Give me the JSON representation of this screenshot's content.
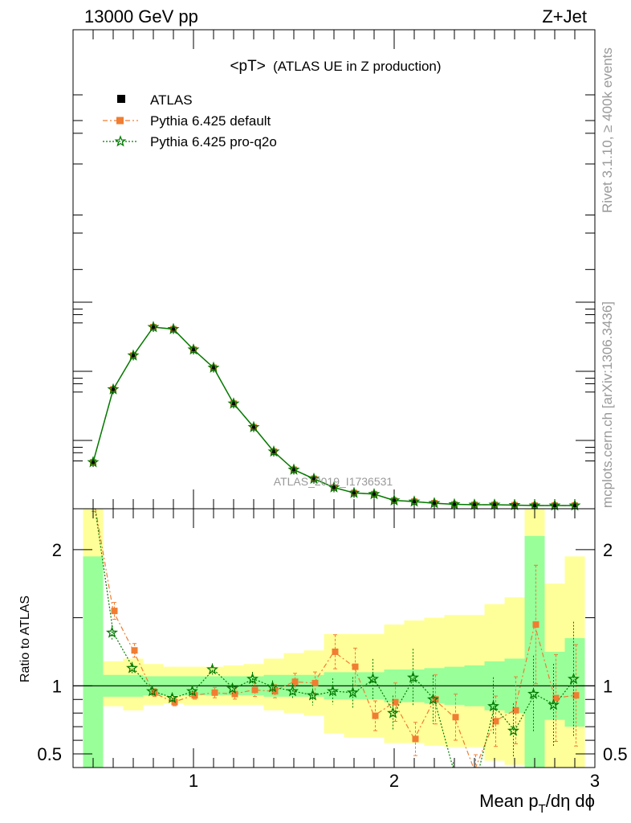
{
  "header": {
    "left": "13000 GeV pp",
    "right": "Z+Jet"
  },
  "title": {
    "main": "<pT>",
    "sub": "(ATLAS UE in Z production)"
  },
  "side": {
    "rivet": "Rivet 3.1.10, ≥ 400k events",
    "source": "mcplots.cern.ch [arXiv:1306.3436]"
  },
  "watermark": "ATLAS_2019_I1736531",
  "legend": {
    "data": "ATLAS",
    "mc1": "Pythia 6.425 default",
    "mc2": "Pythia 6.425 pro-q2o"
  },
  "axes": {
    "ratio_ylabel": "Ratio to ATLAS",
    "xlabel_main": "Mean p",
    "xlabel_sub": "T",
    "xlabel_tail": "/dη dϕ"
  },
  "colors": {
    "data": "#000000",
    "mc1": "#f07d32",
    "mc2": "#007a00",
    "band_inner": "#99ff99",
    "band_outer": "#ffff99"
  },
  "chart_data": [
    {
      "type": "line",
      "panel": "main",
      "xlim": [
        0.4,
        3.0
      ],
      "ylim": [
        0.0,
        1.0
      ],
      "y_scale": "relative (no tick labels printed)",
      "x": [
        0.5,
        0.6,
        0.7,
        0.8,
        0.9,
        1.0,
        1.1,
        1.2,
        1.3,
        1.4,
        1.5,
        1.6,
        1.7,
        1.8,
        1.9,
        2.0,
        2.1,
        2.2,
        2.3,
        2.4,
        2.5,
        2.6,
        2.7,
        2.8,
        2.9
      ],
      "series": [
        {
          "name": "ATLAS",
          "values": [
            0.112,
            0.297,
            0.383,
            0.455,
            0.45,
            0.398,
            0.352,
            0.261,
            0.201,
            0.139,
            0.093,
            0.07,
            0.048,
            0.034,
            0.031,
            0.015,
            0.012,
            0.008,
            0.005,
            0.004,
            0.004,
            0.003,
            0.002,
            0.002,
            0.002
          ]
        },
        {
          "name": "Pythia 6.425 default",
          "values": [
            0.112,
            0.297,
            0.383,
            0.455,
            0.45,
            0.398,
            0.352,
            0.261,
            0.201,
            0.139,
            0.093,
            0.07,
            0.048,
            0.034,
            0.031,
            0.015,
            0.012,
            0.008,
            0.005,
            0.004,
            0.004,
            0.003,
            0.002,
            0.002,
            0.002
          ]
        },
        {
          "name": "Pythia 6.425 pro-q2o",
          "values": [
            0.112,
            0.297,
            0.383,
            0.455,
            0.45,
            0.398,
            0.352,
            0.261,
            0.201,
            0.139,
            0.093,
            0.07,
            0.048,
            0.034,
            0.031,
            0.015,
            0.012,
            0.008,
            0.005,
            0.004,
            0.004,
            0.003,
            0.002,
            0.002,
            0.002
          ]
        }
      ]
    },
    {
      "type": "line",
      "panel": "ratio",
      "ylabel": "Ratio to ATLAS",
      "xlabel": "Mean pT/dη dϕ",
      "xlim": [
        0.4,
        3.0
      ],
      "ylim": [
        0.4,
        2.3
      ],
      "x_ticks": [
        1,
        2,
        3
      ],
      "y_ticks": [
        0.5,
        1,
        2
      ],
      "bands": {
        "x_edges": [
          0.45,
          0.55,
          0.65,
          0.75,
          0.85,
          0.95,
          1.05,
          1.15,
          1.25,
          1.35,
          1.45,
          1.55,
          1.65,
          1.75,
          1.85,
          1.95,
          2.05,
          2.15,
          2.25,
          2.35,
          2.45,
          2.55,
          2.65,
          2.75,
          2.85,
          2.95
        ],
        "inner_lo": [
          0.4,
          0.92,
          0.92,
          0.93,
          0.93,
          0.93,
          0.93,
          0.93,
          0.93,
          0.92,
          0.92,
          0.92,
          0.9,
          0.9,
          0.9,
          0.88,
          0.88,
          0.87,
          0.86,
          0.85,
          0.82,
          0.8,
          0.4,
          0.75,
          0.7
        ],
        "inner_hi": [
          1.95,
          1.08,
          1.08,
          1.07,
          1.07,
          1.07,
          1.07,
          1.07,
          1.07,
          1.08,
          1.08,
          1.08,
          1.1,
          1.1,
          1.1,
          1.12,
          1.12,
          1.13,
          1.14,
          1.15,
          1.18,
          1.2,
          2.1,
          1.25,
          1.35
        ],
        "outer_lo": [
          0.4,
          0.85,
          0.82,
          0.86,
          0.87,
          0.86,
          0.86,
          0.86,
          0.86,
          0.82,
          0.8,
          0.78,
          0.65,
          0.62,
          0.62,
          0.58,
          0.58,
          0.56,
          0.55,
          0.55,
          0.45,
          0.42,
          0.4,
          0.4,
          0.4
        ],
        "outer_hi": [
          2.3,
          1.18,
          1.2,
          1.16,
          1.14,
          1.14,
          1.14,
          1.15,
          1.16,
          1.2,
          1.24,
          1.26,
          1.38,
          1.38,
          1.38,
          1.45,
          1.48,
          1.5,
          1.52,
          1.52,
          1.6,
          1.65,
          2.3,
          1.75,
          1.95
        ]
      },
      "series": [
        {
          "name": "Pythia 6.425 default",
          "values": [
            2.4,
            1.55,
            1.26,
            0.95,
            0.88,
            0.93,
            0.95,
            0.94,
            0.97,
            0.96,
            1.03,
            1.02,
            1.25,
            1.14,
            0.78,
            0.88,
            0.61,
            0.9,
            0.77,
            0.38,
            0.74,
            0.82,
            1.45,
            0.91,
            0.93
          ],
          "err": [
            0.05,
            0.04,
            0.04,
            0.03,
            0.03,
            0.03,
            0.04,
            0.04,
            0.05,
            0.05,
            0.06,
            0.08,
            0.1,
            0.12,
            0.14,
            0.16,
            0.2,
            0.2,
            0.22,
            0.3,
            0.25,
            0.3,
            0.3,
            0.35,
            0.4
          ]
        },
        {
          "name": "Pythia 6.425 pro-q2o",
          "values": [
            2.4,
            1.39,
            1.13,
            0.96,
            0.91,
            0.96,
            1.12,
            0.98,
            1.05,
            0.99,
            0.96,
            0.93,
            0.96,
            0.95,
            1.05,
            0.8,
            1.06,
            0.9,
            0.36,
            0.25,
            0.85,
            0.67,
            0.94,
            0.86,
            1.05
          ],
          "err": [
            0.05,
            0.04,
            0.04,
            0.03,
            0.03,
            0.03,
            0.04,
            0.04,
            0.05,
            0.05,
            0.06,
            0.08,
            0.1,
            0.12,
            0.14,
            0.16,
            0.2,
            0.2,
            0.22,
            0.3,
            0.25,
            0.3,
            0.3,
            0.35,
            0.4
          ]
        }
      ]
    }
  ]
}
